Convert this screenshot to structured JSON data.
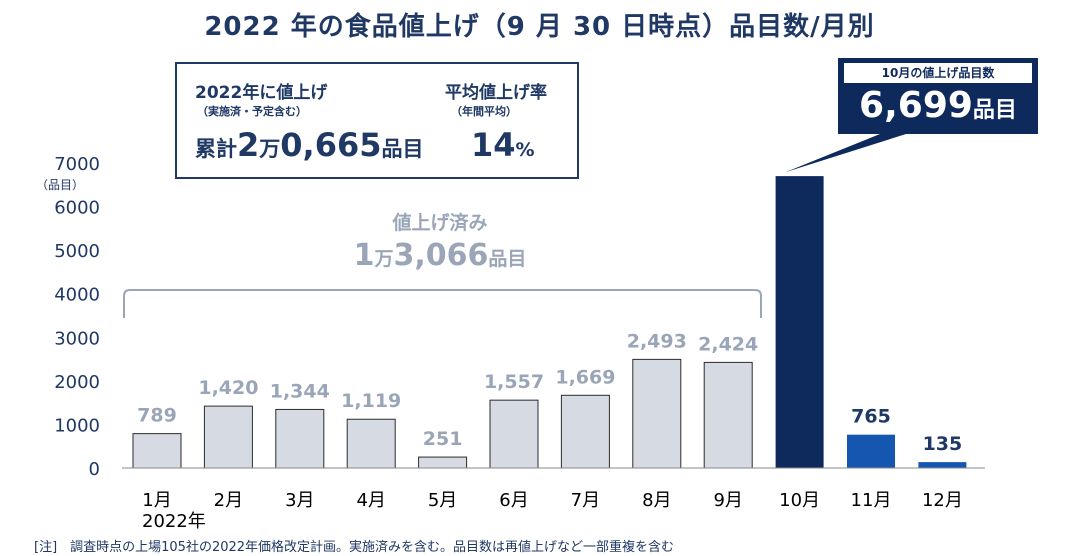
{
  "title": "2022 年の食品値上げ（9 月 30 日時点）品目数/月別",
  "summary": {
    "total_label": "2022年に値上げ",
    "total_sub": "（実施済・予定含む）",
    "total_prefix": "累計",
    "total_big1": "2",
    "total_man": "万",
    "total_big2": "0,665",
    "total_unit": "品目",
    "rate_label": "平均値上げ率",
    "rate_sub": "（年間平均）",
    "rate_value": "14",
    "rate_unit": "%"
  },
  "callout": {
    "header": "10月の値上げ品目数",
    "value": "6,699",
    "unit": "品目"
  },
  "done": {
    "label": "値上げ済み",
    "big1": "1",
    "man": "万",
    "big2": "3,066",
    "unit": "品目"
  },
  "note": "[注]　調査時点の上場105社の2022年価格改定計画。実施済みを含む。品目数は再値上げなど一部重複を含む",
  "colors": {
    "done": "#d5dae3",
    "october": "#0e2a5c",
    "planned": "#1557b0",
    "done_label": "#9aa6b8",
    "planned_label": "#1f3864",
    "text": "#1f3864"
  },
  "chart_data": {
    "type": "bar",
    "categories": [
      "1月",
      "2月",
      "3月",
      "4月",
      "5月",
      "6月",
      "7月",
      "8月",
      "9月",
      "10月",
      "11月",
      "12月"
    ],
    "values": [
      789,
      1420,
      1344,
      1119,
      251,
      1557,
      1669,
      2493,
      2424,
      6699,
      765,
      135
    ],
    "data_labels": [
      "789",
      "1,420",
      "1,344",
      "1,119",
      "251",
      "1,557",
      "1,669",
      "2,493",
      "2,424",
      "",
      "765",
      "135"
    ],
    "bar_groups": [
      "done",
      "done",
      "done",
      "done",
      "done",
      "done",
      "done",
      "done",
      "done",
      "october",
      "planned",
      "planned"
    ],
    "ylim": [
      0,
      7000
    ],
    "yticks": [
      0,
      1000,
      2000,
      3000,
      4000,
      5000,
      6000,
      7000
    ],
    "ylabel": "（品目）",
    "year_label": "2022年",
    "grid": false
  }
}
